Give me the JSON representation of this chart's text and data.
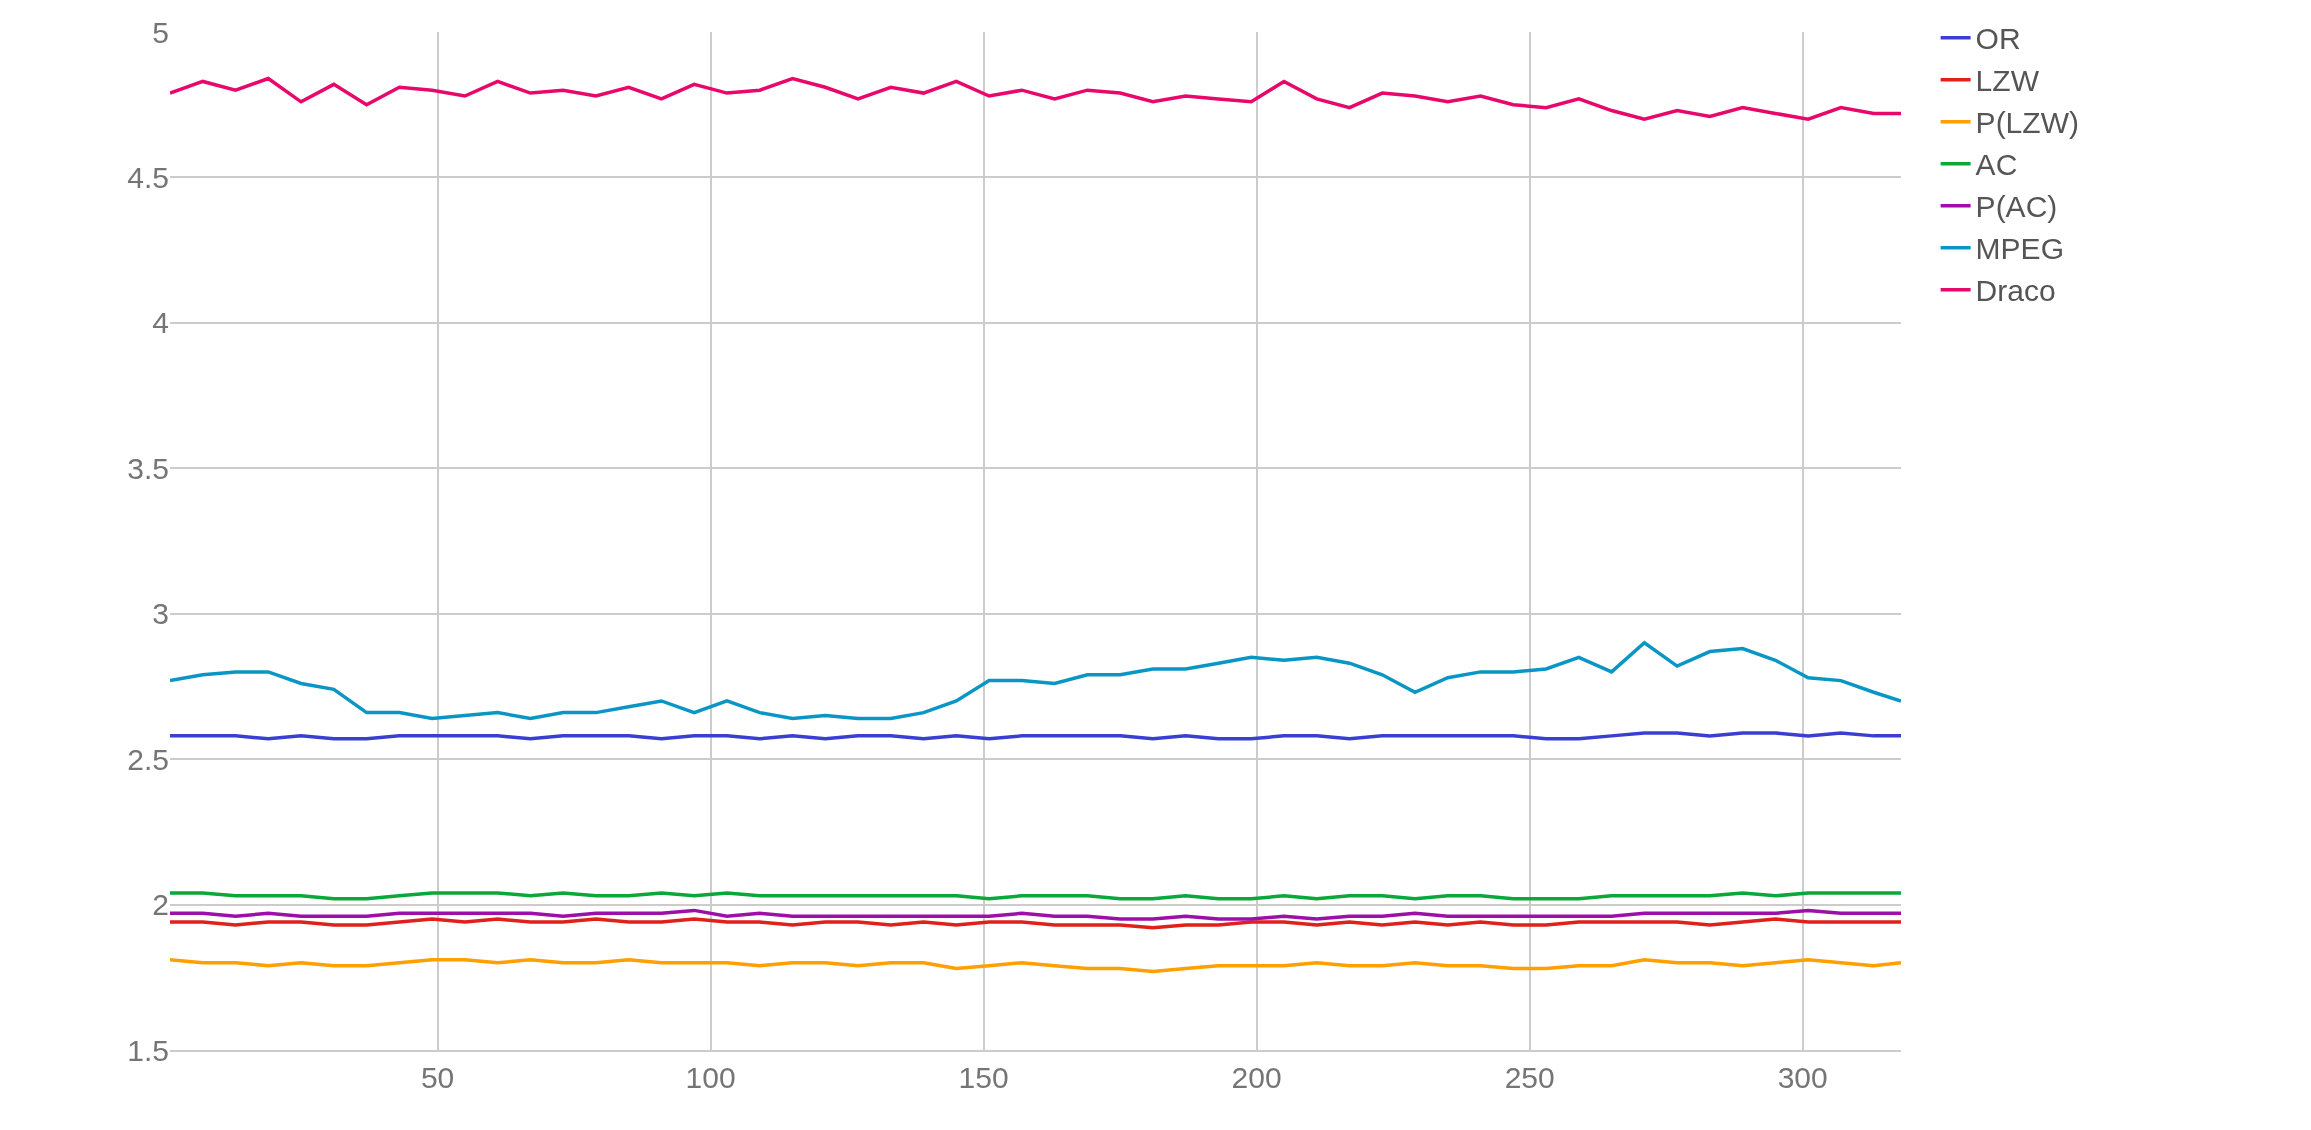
{
  "chart_data": {
    "type": "line",
    "x": [
      1,
      7,
      13,
      19,
      25,
      31,
      37,
      43,
      49,
      55,
      61,
      67,
      73,
      79,
      85,
      91,
      97,
      103,
      109,
      115,
      121,
      127,
      133,
      139,
      145,
      151,
      157,
      163,
      169,
      175,
      181,
      187,
      193,
      199,
      205,
      211,
      217,
      223,
      229,
      235,
      241,
      247,
      253,
      259,
      265,
      271,
      277,
      283,
      289,
      295,
      301,
      307,
      313,
      318
    ],
    "series": [
      {
        "name": "OR",
        "color": "#3b3fd1",
        "values": [
          2.58,
          2.58,
          2.58,
          2.57,
          2.58,
          2.57,
          2.57,
          2.58,
          2.58,
          2.58,
          2.58,
          2.57,
          2.58,
          2.58,
          2.58,
          2.57,
          2.58,
          2.58,
          2.57,
          2.58,
          2.57,
          2.58,
          2.58,
          2.57,
          2.58,
          2.57,
          2.58,
          2.58,
          2.58,
          2.58,
          2.57,
          2.58,
          2.57,
          2.57,
          2.58,
          2.58,
          2.57,
          2.58,
          2.58,
          2.58,
          2.58,
          2.58,
          2.57,
          2.57,
          2.58,
          2.59,
          2.59,
          2.58,
          2.59,
          2.59,
          2.58,
          2.59,
          2.58,
          2.58
        ]
      },
      {
        "name": "LZW",
        "color": "#e0201a",
        "values": [
          1.94,
          1.94,
          1.93,
          1.94,
          1.94,
          1.93,
          1.93,
          1.94,
          1.95,
          1.94,
          1.95,
          1.94,
          1.94,
          1.95,
          1.94,
          1.94,
          1.95,
          1.94,
          1.94,
          1.93,
          1.94,
          1.94,
          1.93,
          1.94,
          1.93,
          1.94,
          1.94,
          1.93,
          1.93,
          1.93,
          1.92,
          1.93,
          1.93,
          1.94,
          1.94,
          1.93,
          1.94,
          1.93,
          1.94,
          1.93,
          1.94,
          1.93,
          1.93,
          1.94,
          1.94,
          1.94,
          1.94,
          1.93,
          1.94,
          1.95,
          1.94,
          1.94,
          1.94,
          1.94
        ]
      },
      {
        "name": "P(LZW)",
        "color": "#ff9f00",
        "values": [
          1.81,
          1.8,
          1.8,
          1.79,
          1.8,
          1.79,
          1.79,
          1.8,
          1.81,
          1.81,
          1.8,
          1.81,
          1.8,
          1.8,
          1.81,
          1.8,
          1.8,
          1.8,
          1.79,
          1.8,
          1.8,
          1.79,
          1.8,
          1.8,
          1.78,
          1.79,
          1.8,
          1.79,
          1.78,
          1.78,
          1.77,
          1.78,
          1.79,
          1.79,
          1.79,
          1.8,
          1.79,
          1.79,
          1.8,
          1.79,
          1.79,
          1.78,
          1.78,
          1.79,
          1.79,
          1.81,
          1.8,
          1.8,
          1.79,
          1.8,
          1.81,
          1.8,
          1.79,
          1.8
        ]
      },
      {
        "name": "AC",
        "color": "#0aa83a",
        "values": [
          2.04,
          2.04,
          2.03,
          2.03,
          2.03,
          2.02,
          2.02,
          2.03,
          2.04,
          2.04,
          2.04,
          2.03,
          2.04,
          2.03,
          2.03,
          2.04,
          2.03,
          2.04,
          2.03,
          2.03,
          2.03,
          2.03,
          2.03,
          2.03,
          2.03,
          2.02,
          2.03,
          2.03,
          2.03,
          2.02,
          2.02,
          2.03,
          2.02,
          2.02,
          2.03,
          2.02,
          2.03,
          2.03,
          2.02,
          2.03,
          2.03,
          2.02,
          2.02,
          2.02,
          2.03,
          2.03,
          2.03,
          2.03,
          2.04,
          2.03,
          2.04,
          2.04,
          2.04,
          2.04
        ]
      },
      {
        "name": "P(AC)",
        "color": "#9c0fa8",
        "values": [
          1.97,
          1.97,
          1.96,
          1.97,
          1.96,
          1.96,
          1.96,
          1.97,
          1.97,
          1.97,
          1.97,
          1.97,
          1.96,
          1.97,
          1.97,
          1.97,
          1.98,
          1.96,
          1.97,
          1.96,
          1.96,
          1.96,
          1.96,
          1.96,
          1.96,
          1.96,
          1.97,
          1.96,
          1.96,
          1.95,
          1.95,
          1.96,
          1.95,
          1.95,
          1.96,
          1.95,
          1.96,
          1.96,
          1.97,
          1.96,
          1.96,
          1.96,
          1.96,
          1.96,
          1.96,
          1.97,
          1.97,
          1.97,
          1.97,
          1.97,
          1.98,
          1.97,
          1.97,
          1.97
        ]
      },
      {
        "name": "MPEG",
        "color": "#0a96c4",
        "values": [
          2.77,
          2.79,
          2.8,
          2.8,
          2.76,
          2.74,
          2.66,
          2.66,
          2.64,
          2.65,
          2.66,
          2.64,
          2.66,
          2.66,
          2.68,
          2.7,
          2.66,
          2.7,
          2.66,
          2.64,
          2.65,
          2.64,
          2.64,
          2.66,
          2.7,
          2.77,
          2.77,
          2.76,
          2.79,
          2.79,
          2.81,
          2.81,
          2.83,
          2.85,
          2.84,
          2.85,
          2.83,
          2.79,
          2.73,
          2.78,
          2.8,
          2.8,
          2.81,
          2.85,
          2.8,
          2.9,
          2.82,
          2.87,
          2.88,
          2.84,
          2.78,
          2.77,
          2.73,
          2.7
        ]
      },
      {
        "name": "Draco",
        "color": "#e8076b",
        "values": [
          4.79,
          4.83,
          4.8,
          4.84,
          4.76,
          4.82,
          4.75,
          4.81,
          4.8,
          4.78,
          4.83,
          4.79,
          4.8,
          4.78,
          4.81,
          4.77,
          4.82,
          4.79,
          4.8,
          4.84,
          4.81,
          4.77,
          4.81,
          4.79,
          4.83,
          4.78,
          4.8,
          4.77,
          4.8,
          4.79,
          4.76,
          4.78,
          4.77,
          4.76,
          4.83,
          4.77,
          4.74,
          4.79,
          4.78,
          4.76,
          4.78,
          4.75,
          4.74,
          4.77,
          4.73,
          4.7,
          4.73,
          4.71,
          4.74,
          4.72,
          4.7,
          4.74,
          4.72,
          4.72
        ]
      }
    ],
    "xlim": [
      1,
      318
    ],
    "xticks": [
      50,
      100,
      150,
      200,
      250,
      300
    ],
    "ylim": [
      1.5,
      5
    ],
    "yticks": [
      1.5,
      2,
      2.5,
      3,
      3.5,
      4,
      4.5,
      5
    ],
    "grid": true,
    "legend": "top right",
    "marker": "none",
    "line_style": "solid"
  }
}
